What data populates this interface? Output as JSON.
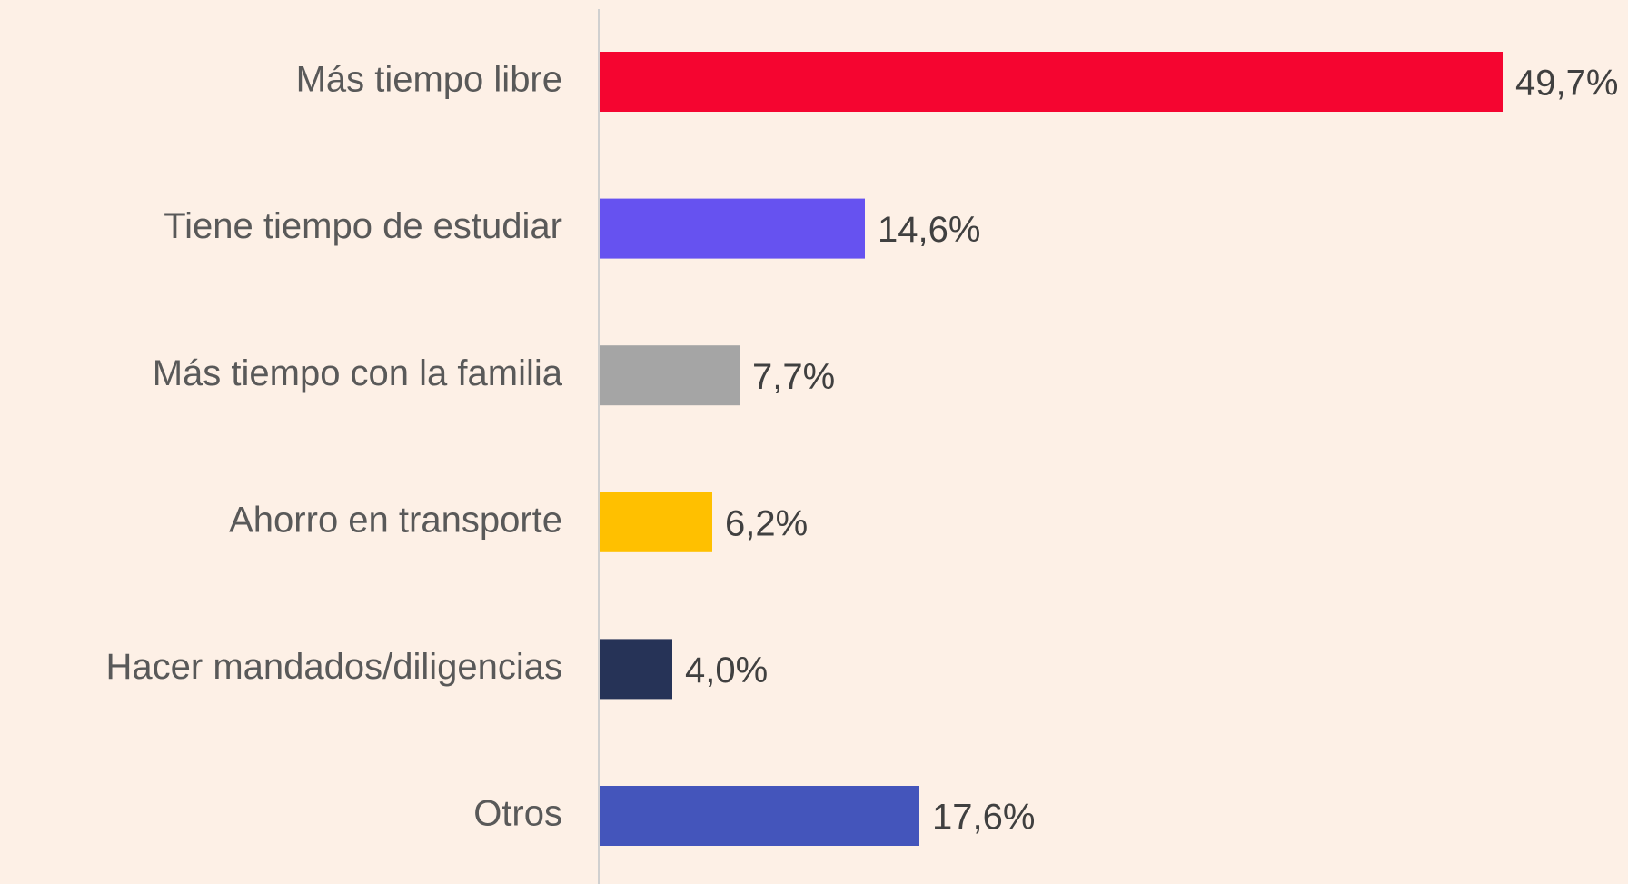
{
  "chart_data": {
    "type": "bar",
    "orientation": "horizontal",
    "categories": [
      "Más tiempo libre",
      "Tiene tiempo de estudiar",
      "Más tiempo con la familia",
      "Ahorro en transporte",
      "Hacer mandados/diligencias",
      "Otros"
    ],
    "values": [
      49.7,
      14.6,
      7.7,
      6.2,
      4.0,
      17.6
    ],
    "value_labels": [
      "49,7%",
      "14,6%",
      "7,7%",
      "6,2%",
      "4,0%",
      "17,6%"
    ],
    "colors": [
      "#f50530",
      "#6652f0",
      "#a5a5a5",
      "#ffc000",
      "#263357",
      "#4455bb"
    ]
  }
}
